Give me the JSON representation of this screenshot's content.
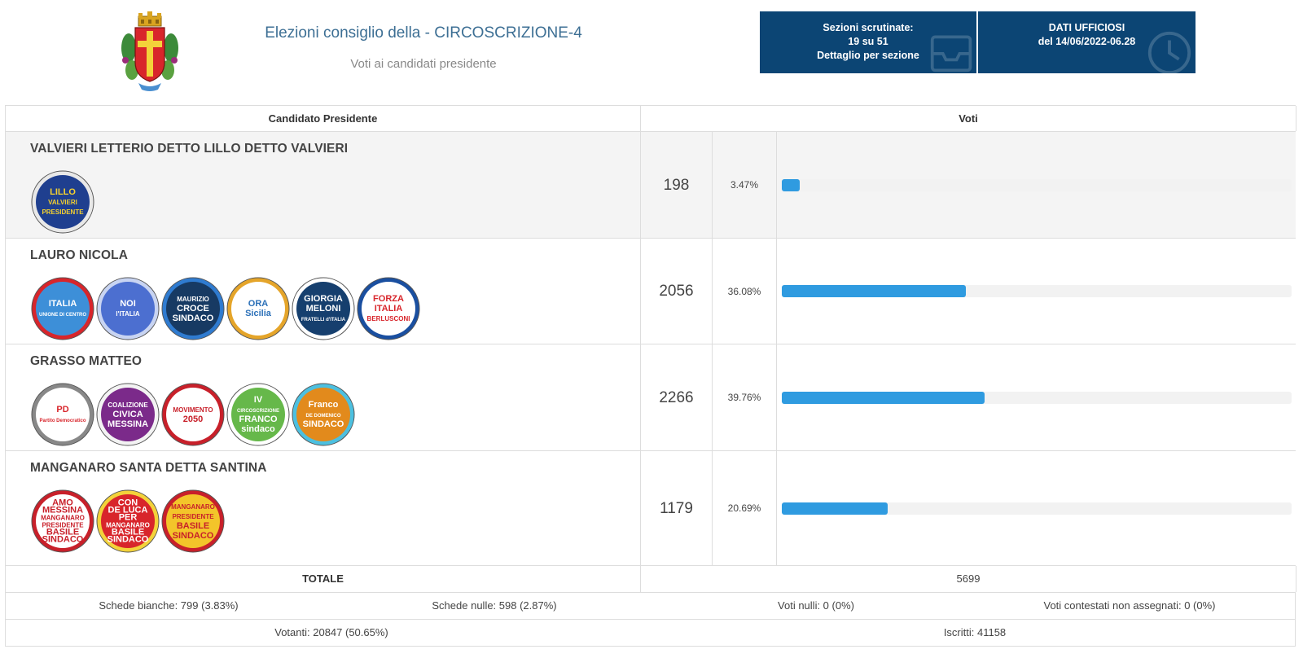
{
  "header": {
    "title": "Elezioni consiglio della - CIRCOSCRIZIONE-4",
    "subtitle": "Voti ai candidati presidente",
    "box1": {
      "line1": "Sezioni scrutinate:",
      "line2": "19 su 51",
      "line3": "Dettaglio per sezione",
      "icon": "inbox-icon"
    },
    "box2": {
      "line1": "DATI UFFICIOSI",
      "line2": "del 14/06/2022-06.28",
      "icon": "clock-icon"
    },
    "colors": {
      "box_bg": "#0c4574",
      "title": "#3d6f94",
      "bar": "#2f9be0"
    }
  },
  "table": {
    "col_candidate": "Candidato Presidente",
    "col_votes": "Voti",
    "candidates": [
      {
        "name": "VALVIERI LETTERIO DETTO LILLO DETTO VALVIERI",
        "votes": "198",
        "percent": "3.47%",
        "fraction": 0.0347,
        "logos": [
          {
            "icon": "lillo-valvieri-presidente-logo",
            "text": [
              "LILLO",
              "VALVIERI",
              "PRESIDENTE"
            ]
          }
        ]
      },
      {
        "name": "LAURO NICOLA",
        "votes": "2056",
        "percent": "36.08%",
        "fraction": 0.3608,
        "logos": [
          {
            "icon": "italia-unione-di-centro-logo",
            "text": [
              "ITALIA",
              "UNIONE DI CENTRO"
            ]
          },
          {
            "icon": "noi-con-italia-logo",
            "text": [
              "NOI",
              "l'ITALIA"
            ]
          },
          {
            "icon": "maurizio-croce-sindaco-logo",
            "text": [
              "MAURIZIO",
              "CROCE",
              "SINDACO"
            ]
          },
          {
            "icon": "ora-sicilia-logo",
            "text": [
              "ORA",
              "Sicilia"
            ]
          },
          {
            "icon": "fratelli-d-italia-logo",
            "text": [
              "GIORGIA",
              "MELONI",
              "FRATELLI d'ITALIA"
            ]
          },
          {
            "icon": "forza-italia-logo",
            "text": [
              "FORZA",
              "ITALIA",
              "BERLUSCONI"
            ]
          }
        ]
      },
      {
        "name": "GRASSO MATTEO",
        "votes": "2266",
        "percent": "39.76%",
        "fraction": 0.3976,
        "logos": [
          {
            "icon": "partito-democratico-logo",
            "text": [
              "PD",
              "Partito Democratico"
            ]
          },
          {
            "icon": "coalizione-civica-logo",
            "text": [
              "COALIZIONE",
              "CIVICA",
              "MESSINA"
            ]
          },
          {
            "icon": "movimento-2050-logo",
            "text": [
              "MOVIMENTO",
              "2050"
            ]
          },
          {
            "icon": "iv-circoscrizione-franco-logo",
            "text": [
              "IV",
              "CIRCOSCRIZIONE",
              "FRANCO",
              "sindaco"
            ]
          },
          {
            "icon": "franco-de-domenico-logo",
            "text": [
              "Franco",
              "DE DOMENICO",
              "SINDACO"
            ]
          }
        ]
      },
      {
        "name": "MANGANARO SANTA DETTA SANTINA",
        "votes": "1179",
        "percent": "20.69%",
        "fraction": 0.2069,
        "logos": [
          {
            "icon": "amo-messina-manganaro-logo",
            "text": [
              "AMO",
              "MESSINA",
              "MANGANARO",
              "PRESIDENTE",
              "BASILE",
              "SINDACO"
            ]
          },
          {
            "icon": "de-luca-per-manganaro-logo",
            "text": [
              "CON",
              "DE LUCA",
              "PER",
              "MANGANARO",
              "BASILE",
              "SINDACO"
            ]
          },
          {
            "icon": "manganaro-presidente-logo",
            "text": [
              "MANGANARO",
              "PRESIDENTE",
              "BASILE",
              "SINDACO"
            ]
          }
        ]
      }
    ],
    "totale_label": "TOTALE",
    "totale_value": "5699",
    "schede_bianche": "Schede bianche: 799 (3.83%)",
    "schede_nulle": "Schede nulle: 598 (2.87%)",
    "voti_nulli": "Voti nulli: 0 (0%)",
    "voti_contestati": "Voti contestati non assegnati: 0 (0%)",
    "votanti": "Votanti: 20847 (50.65%)",
    "iscritti": "Iscritti: 41158"
  }
}
